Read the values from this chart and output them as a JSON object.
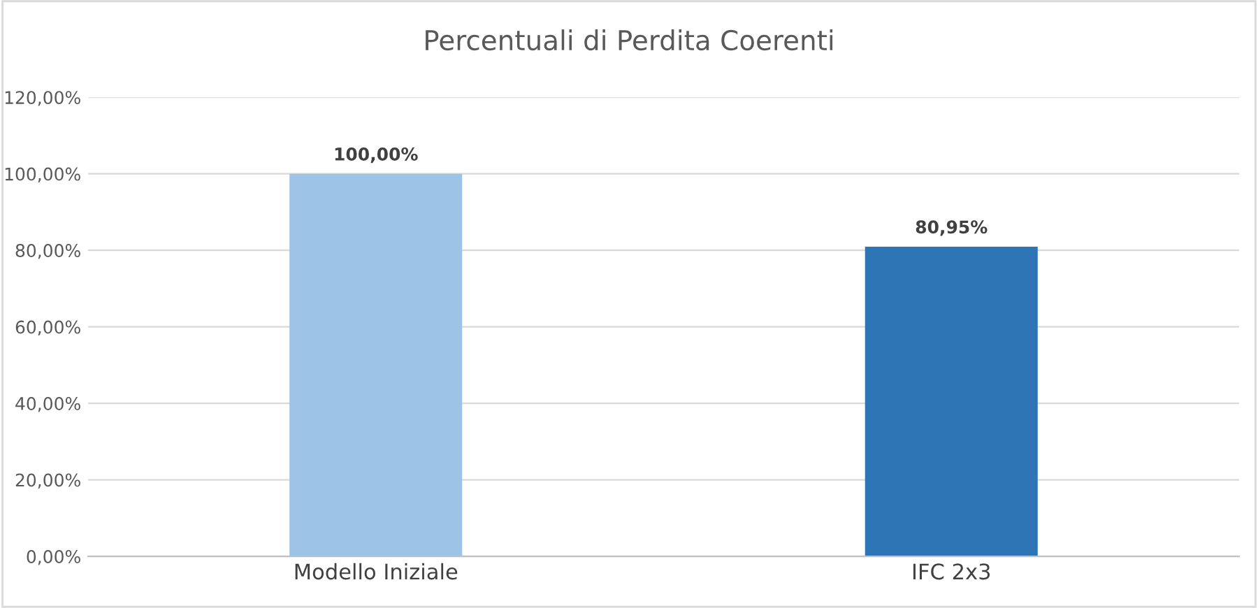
{
  "chart_data": {
    "type": "bar",
    "title": "Percentuali di Perdita Coerenti",
    "categories": [
      "Modello Iniziale",
      "IFC 2x3"
    ],
    "values": [
      100,
      80.95
    ],
    "colors": [
      "#9dc3e6",
      "#2e75b6"
    ],
    "value_labels": [
      "100,00%",
      "80,95%"
    ],
    "ylim": [
      0,
      120
    ],
    "yticks": [
      {
        "value": 0,
        "label": "0,00%"
      },
      {
        "value": 20,
        "label": "20,00%"
      },
      {
        "value": 40,
        "label": "40,00%"
      },
      {
        "value": 60,
        "label": "60,00%"
      },
      {
        "value": 80,
        "label": "80,00%"
      },
      {
        "value": 100,
        "label": "100,00%"
      },
      {
        "value": 120,
        "label": "120,00%"
      }
    ],
    "grid": "y",
    "legend": false
  }
}
